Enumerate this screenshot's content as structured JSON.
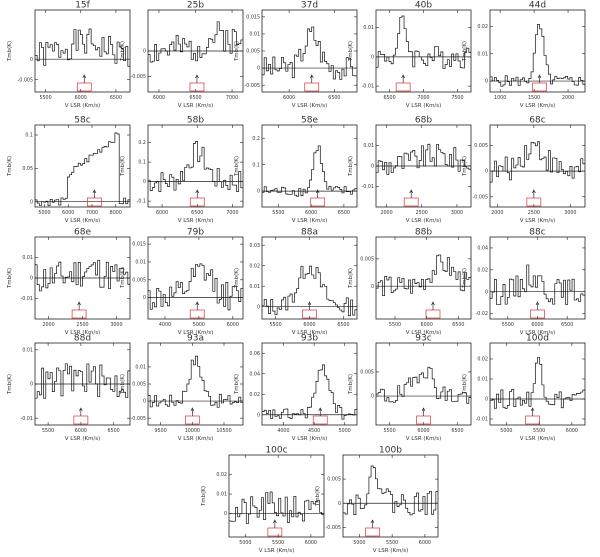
{
  "common": {
    "ylabel": "Tmb(K)",
    "xlabel": "V LSR (Km/s)"
  },
  "colors": {
    "spectrum": "#111111",
    "axes": "#222222",
    "marker_box": "#e03030"
  },
  "chart_data": [
    {
      "type": "line",
      "title": "15f",
      "xticks": [
        5500,
        6000,
        6500
      ],
      "xlim": [
        5350,
        6700
      ],
      "yticks": [
        "0",
        "-0.005"
      ],
      "ylim": [
        -0.008,
        0.012
      ],
      "zero": 0,
      "peak": [
        6050,
        0.004,
        500
      ],
      "noise": 0.0035,
      "seed": 1,
      "marker_center": 6050
    },
    {
      "type": "line",
      "title": "25b",
      "xticks": [
        6000,
        6500,
        7000
      ],
      "xlim": [
        5850,
        7150
      ],
      "yticks": [
        "0",
        "-0.005"
      ],
      "ylim": [
        -0.008,
        0.008
      ],
      "zero": 0,
      "peak": [
        6850,
        0.003,
        300
      ],
      "noise": 0.003,
      "seed": 2,
      "marker_center": 6520
    },
    {
      "type": "line",
      "title": "37d",
      "xticks": [
        6000,
        6500
      ],
      "xlim": [
        5700,
        6750
      ],
      "yticks": [
        "0.015",
        "0.01",
        "0.005",
        "0",
        "-0.005"
      ],
      "ylim": [
        -0.007,
        0.017
      ],
      "zero": 0,
      "peak": [
        6250,
        0.01,
        120
      ],
      "noise": 0.0035,
      "seed": 3,
      "marker_center": 6250
    },
    {
      "type": "line",
      "title": "40b",
      "xticks": [
        6500,
        7000,
        7500
      ],
      "xlim": [
        6300,
        7700
      ],
      "yticks": [
        "0.01",
        "0",
        "-0.01"
      ],
      "ylim": [
        -0.012,
        0.016
      ],
      "zero": 0,
      "peak": [
        6700,
        0.012,
        80
      ],
      "noise": 0.004,
      "seed": 4,
      "marker_center": 6700
    },
    {
      "type": "line",
      "title": "44d",
      "xticks": [
        1000,
        1500,
        2000
      ],
      "xlim": [
        850,
        2250
      ],
      "yticks": [
        "0.02",
        "0.01",
        "0"
      ],
      "ylim": [
        -0.004,
        0.026
      ],
      "zero": 0,
      "peak": [
        1580,
        0.02,
        90
      ],
      "noise": 0.002,
      "seed": 5,
      "marker_center": 1580
    },
    {
      "type": "line",
      "title": "58c",
      "xticks": [
        5000,
        6000,
        7000,
        8000
      ],
      "xlim": [
        4600,
        8600
      ],
      "yticks": [
        "0.1",
        "0.05",
        "0"
      ],
      "ylim": [
        -0.008,
        0.115
      ],
      "zero": 0,
      "plateau": [
        6000,
        8100,
        0.04,
        0.1
      ],
      "noise": 0.006,
      "seed": 6,
      "marker_center": 7100
    },
    {
      "type": "line",
      "title": "58b",
      "xticks": [
        6000,
        6500,
        7000
      ],
      "xlim": [
        5800,
        7150
      ],
      "yticks": [
        "0.2",
        "0.1",
        "0",
        "-0.1"
      ],
      "ylim": [
        -0.13,
        0.29
      ],
      "zero": 0,
      "peak": [
        6500,
        0.15,
        180
      ],
      "noise": 0.06,
      "seed": 7,
      "marker_center": 6500
    },
    {
      "type": "line",
      "title": "58e",
      "xticks": [
        5500,
        6000,
        6500
      ],
      "xlim": [
        5250,
        6700
      ],
      "yticks": [
        "0.2",
        "0.1",
        "0"
      ],
      "ylim": [
        -0.06,
        0.25
      ],
      "zero": 0,
      "peak": [
        6100,
        0.17,
        90
      ],
      "noise": 0.02,
      "seed": 8,
      "marker_center": 6100
    },
    {
      "type": "line",
      "title": "68b",
      "xticks": [
        2000,
        2500,
        3000
      ],
      "xlim": [
        1850,
        3200
      ],
      "yticks": [
        "0.01",
        "0",
        "-0.01"
      ],
      "ylim": [
        -0.02,
        0.02
      ],
      "zero": 0,
      "peak": [
        2700,
        0.005,
        400
      ],
      "noise": 0.006,
      "seed": 9,
      "marker_center": 2350
    },
    {
      "type": "line",
      "title": "68c",
      "xticks": [
        2000,
        2500,
        3000
      ],
      "xlim": [
        1900,
        3200
      ],
      "yticks": [
        "0.005",
        "0",
        "-0.005"
      ],
      "ylim": [
        -0.007,
        0.009
      ],
      "zero": 0,
      "peak": [
        2500,
        0.005,
        220
      ],
      "noise": 0.0025,
      "seed": 10,
      "marker_center": 2500
    },
    {
      "type": "line",
      "title": "68e",
      "xticks": [
        2000,
        2500,
        3000
      ],
      "xlim": [
        1800,
        3200
      ],
      "yticks": [
        "0.01",
        "0",
        "-0.01"
      ],
      "ylim": [
        -0.02,
        0.02
      ],
      "zero": 0,
      "peak": [
        2600,
        0.004,
        300
      ],
      "noise": 0.008,
      "seed": 11,
      "marker_center": 2450
    },
    {
      "type": "line",
      "title": "79b",
      "xticks": [
        4000,
        5000,
        6000
      ],
      "xlim": [
        3500,
        6300
      ],
      "yticks": [
        "0.015",
        "0.01",
        "0.005",
        "0"
      ],
      "ylim": [
        -0.006,
        0.017
      ],
      "zero": 0,
      "peak": [
        5100,
        0.007,
        450
      ],
      "noise": 0.004,
      "seed": 12,
      "marker_center": 4950
    },
    {
      "type": "line",
      "title": "88a",
      "xticks": [
        5500,
        6000,
        6500
      ],
      "xlim": [
        5300,
        6700
      ],
      "yticks": [
        "0.03",
        "0.02",
        "0.01",
        "0"
      ],
      "ylim": [
        -0.006,
        0.034
      ],
      "zero": 0,
      "peak": [
        6000,
        0.02,
        220
      ],
      "noise": 0.0045,
      "seed": 13,
      "marker_center": 6000
    },
    {
      "type": "line",
      "title": "88b",
      "xticks": [
        5500,
        6000,
        6500
      ],
      "xlim": [
        5200,
        6700
      ],
      "yticks": [
        "0.005",
        "0"
      ],
      "ylim": [
        -0.006,
        0.009
      ],
      "zero": 0,
      "peak": [
        6250,
        0.004,
        250
      ],
      "noise": 0.002,
      "seed": 14,
      "marker_center": 6100
    },
    {
      "type": "line",
      "title": "88c",
      "xticks": [
        5500,
        6000,
        6500
      ],
      "xlim": [
        5200,
        6800
      ],
      "yticks": [
        "0.04",
        "0.02",
        "0",
        "-0.02"
      ],
      "ylim": [
        -0.025,
        0.05
      ],
      "zero": 0,
      "peak": [
        5900,
        0.015,
        200
      ],
      "noise": 0.012,
      "seed": 15,
      "marker_center": 6000
    },
    {
      "type": "line",
      "title": "88d",
      "xticks": [
        5500,
        6000,
        6500
      ],
      "xlim": [
        5300,
        6750
      ],
      "yticks": [
        "0.01",
        "0",
        "-0.01"
      ],
      "ylim": [
        -0.012,
        0.012
      ],
      "zero": 0,
      "peak": [
        6000,
        0.002,
        300
      ],
      "noise": 0.005,
      "seed": 16,
      "marker_center": 6000
    },
    {
      "type": "line",
      "title": "93a",
      "xticks": [
        9500,
        10000,
        10500
      ],
      "xlim": [
        9300,
        10800
      ],
      "yticks": [
        "0.01",
        "0.005",
        "0",
        "-0.005"
      ],
      "ylim": [
        -0.007,
        0.017
      ],
      "zero": 0,
      "peak": [
        10050,
        0.012,
        140
      ],
      "noise": 0.002,
      "seed": 17,
      "marker_center": 10000
    },
    {
      "type": "line",
      "title": "93b",
      "xticks": [
        4000,
        4500,
        5000
      ],
      "xlim": [
        3650,
        5200
      ],
      "yticks": [
        "0.06",
        "0.04",
        "0.02",
        "0"
      ],
      "ylim": [
        -0.01,
        0.07
      ],
      "zero": 0,
      "peak": [
        4650,
        0.045,
        160
      ],
      "noise": 0.006,
      "seed": 18,
      "marker_center": 4600
    },
    {
      "type": "line",
      "title": "93c",
      "xticks": [
        5500,
        6000,
        6500
      ],
      "xlim": [
        5300,
        6700
      ],
      "yticks": [
        "0.005",
        "0"
      ],
      "ylim": [
        -0.006,
        0.011
      ],
      "zero": 0,
      "peak": [
        6000,
        0.006,
        180
      ],
      "noise": 0.0022,
      "seed": 19,
      "marker_center": 6000
    },
    {
      "type": "line",
      "title": "100d",
      "xticks": [
        5000,
        5500,
        6000
      ],
      "xlim": [
        4750,
        6200
      ],
      "yticks": [
        "0.02",
        "0.01",
        "0",
        "-0.01"
      ],
      "ylim": [
        -0.013,
        0.028
      ],
      "zero": 0,
      "peak": [
        5500,
        0.02,
        80
      ],
      "noise": 0.005,
      "seed": 20,
      "marker_center": 5400
    },
    {
      "type": "line",
      "title": "100c",
      "xticks": [
        5000,
        5500,
        6000
      ],
      "xlim": [
        4750,
        6200
      ],
      "yticks": [
        "0.02",
        "0.01",
        "0"
      ],
      "ylim": [
        -0.012,
        0.03
      ],
      "zero": 0,
      "peak": [
        5500,
        0.004,
        300
      ],
      "noise": 0.008,
      "seed": 21,
      "marker_center": 5450
    },
    {
      "type": "line",
      "title": "100b",
      "xticks": [
        5000,
        5500,
        6000
      ],
      "xlim": [
        4750,
        6200
      ],
      "yticks": [
        "0.005",
        "0",
        "-0.005"
      ],
      "ylim": [
        -0.007,
        0.01
      ],
      "zero": 0,
      "peak": [
        5250,
        0.006,
        150
      ],
      "noise": 0.0025,
      "seed": 22,
      "marker_center": 5200
    }
  ]
}
